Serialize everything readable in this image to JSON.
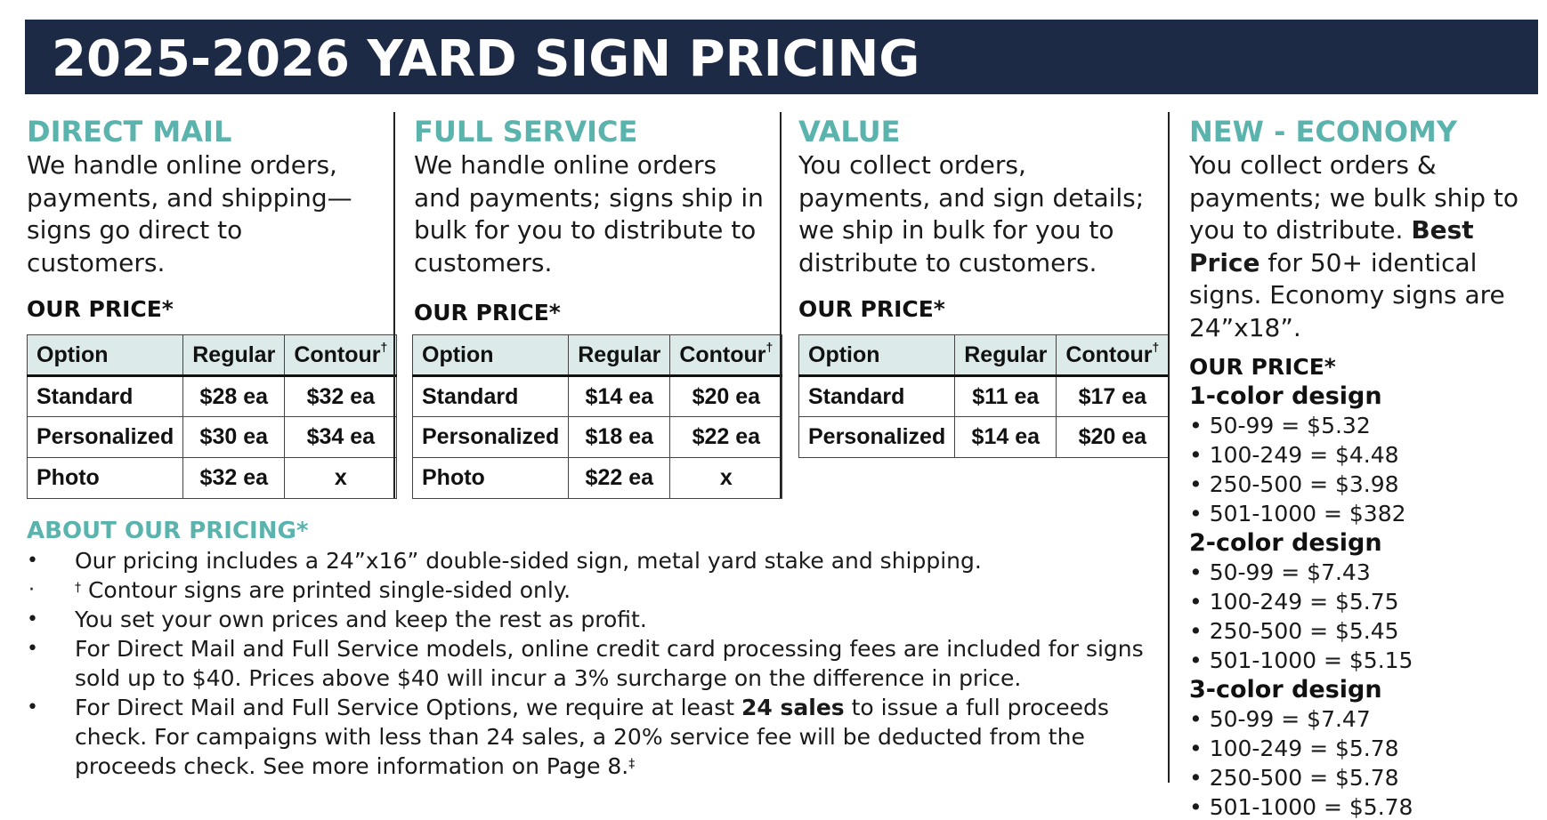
{
  "title": "2025-2026 YARD SIGN PRICING",
  "columns": [
    {
      "heading": "DIRECT MAIL",
      "description": "We handle online orders, payments, and shipping—signs go direct to customers.",
      "price_label": "OUR PRICE*",
      "table": {
        "headers": [
          "Option",
          "Regular",
          "Contour"
        ],
        "header_mark": "†",
        "rows": [
          [
            "Standard",
            "$28 ea",
            "$32 ea"
          ],
          [
            "Personalized",
            "$30 ea",
            "$34 ea"
          ],
          [
            "Photo",
            "$32 ea",
            "x"
          ]
        ]
      }
    },
    {
      "heading": "FULL SERVICE",
      "description": "We handle online orders and payments; signs ship in bulk for you to distribute to customers.",
      "price_label": "OUR PRICE*",
      "table": {
        "headers": [
          "Option",
          "Regular",
          "Contour"
        ],
        "header_mark": "†",
        "rows": [
          [
            "Standard",
            "$14 ea",
            "$20 ea"
          ],
          [
            "Personalized",
            "$18 ea",
            "$22 ea"
          ],
          [
            "Photo",
            "$22 ea",
            "x"
          ]
        ]
      }
    },
    {
      "heading": "VALUE",
      "description": "You collect orders, payments, and sign details; we ship in bulk for you to distribute to customers.",
      "price_label": "OUR PRICE*",
      "table": {
        "headers": [
          "Option",
          "Regular",
          "Contour"
        ],
        "header_mark": "†",
        "rows": [
          [
            "Standard",
            "$11 ea",
            "$17 ea"
          ],
          [
            "Personalized",
            "$14 ea",
            "$20 ea"
          ]
        ]
      }
    }
  ],
  "economy": {
    "heading": "NEW - ECONOMY",
    "desc_part1": "You collect orders & payments; we bulk ship to you to distribute.",
    "desc_bold": "Best Price",
    "desc_part2": "for 50+ identical signs. Economy signs are 24”x18”.",
    "price_label": "OUR PRICE*",
    "groups": [
      {
        "title": "1-color design",
        "tiers": [
          "• 50-99 = $5.32",
          "• 100-249 = $4.48",
          "• 250-500 = $3.98",
          "• 501-1000 = $382"
        ]
      },
      {
        "title": "2-color design",
        "tiers": [
          "• 50-99 = $7.43",
          "• 100-249 = $5.75",
          "• 250-500 = $5.45",
          "• 501-1000 = $5.15"
        ]
      },
      {
        "title": "3-color design",
        "tiers": [
          "• 50-99 = $7.47",
          "• 100-249 = $5.78",
          "• 250-500 = $5.78",
          "• 501-1000 = $5.78"
        ]
      }
    ]
  },
  "about": {
    "heading": "ABOUT OUR PRICING*",
    "item1": "Our pricing includes a 24”x16” double-sided sign, metal yard stake and shipping.",
    "item2_mark": "†",
    "item2": "Contour signs are printed single-sided only.",
    "item3": "You set your own prices and keep the rest as profit.",
    "item4": "For Direct Mail and Full Service models, online credit card processing fees are included for signs sold up to $40. Prices above $40 will incur a 3% surcharge on the difference in price.",
    "item5_part1": "For Direct Mail and Full Service Options, we require at least",
    "item5_bold": "24 sales",
    "item5_part2": "to issue a full proceeds check. For campaigns with less than 24 sales, a 20% service fee will be deducted from the proceeds check. See more information on Page 8.",
    "item5_mark": "‡"
  }
}
